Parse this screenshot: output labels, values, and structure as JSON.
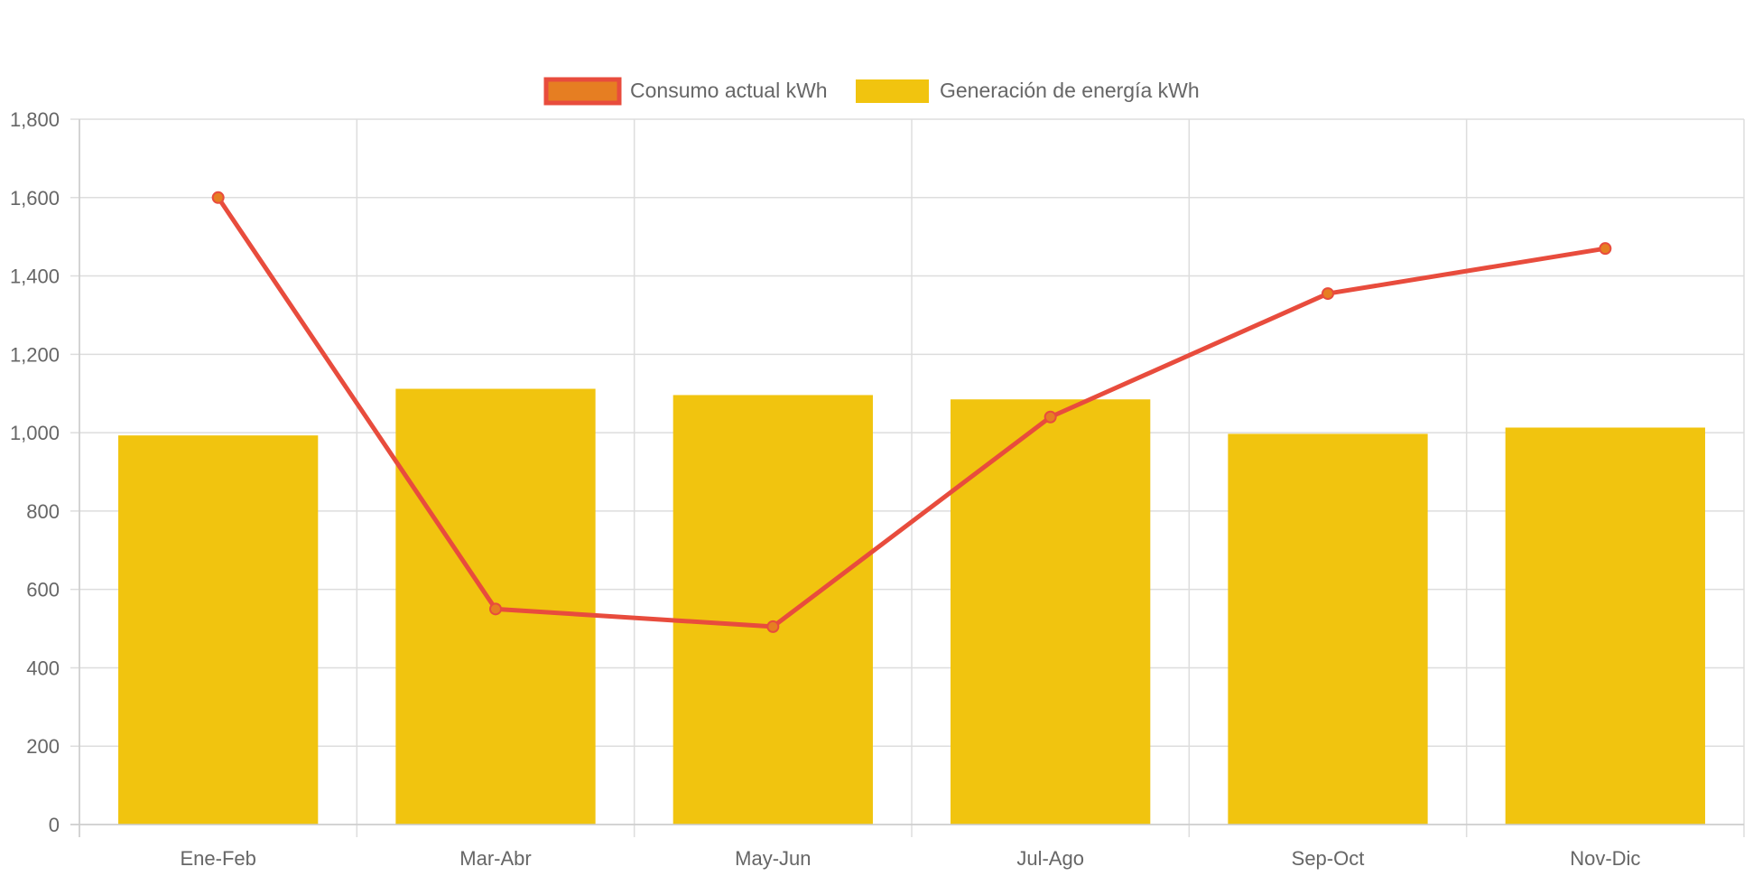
{
  "chart_data": {
    "type": "bar",
    "categories": [
      "Ene-Feb",
      "Mar-Abr",
      "May-Jun",
      "Jul-Ago",
      "Sep-Oct",
      "Nov-Dic"
    ],
    "ylim": [
      0,
      1800
    ],
    "yticks": [
      "0",
      "200",
      "400",
      "600",
      "800",
      "1,000",
      "1,200",
      "1,400",
      "1,600",
      "1,800"
    ],
    "ytick_values": [
      0,
      200,
      400,
      600,
      800,
      1000,
      1200,
      1400,
      1600,
      1800
    ],
    "grid": true,
    "legend_position": "top-center",
    "series": [
      {
        "name": "Consumo actual kWh",
        "type": "line",
        "color": "#e84c3d",
        "point_color": "#e67e22",
        "values": [
          1600,
          550,
          505,
          1040,
          1355,
          1470
        ]
      },
      {
        "name": "Generación de energía kWh",
        "type": "bar",
        "color": "#f1c40f",
        "values": [
          993,
          1112,
          1096,
          1085,
          997,
          1013
        ]
      }
    ]
  }
}
